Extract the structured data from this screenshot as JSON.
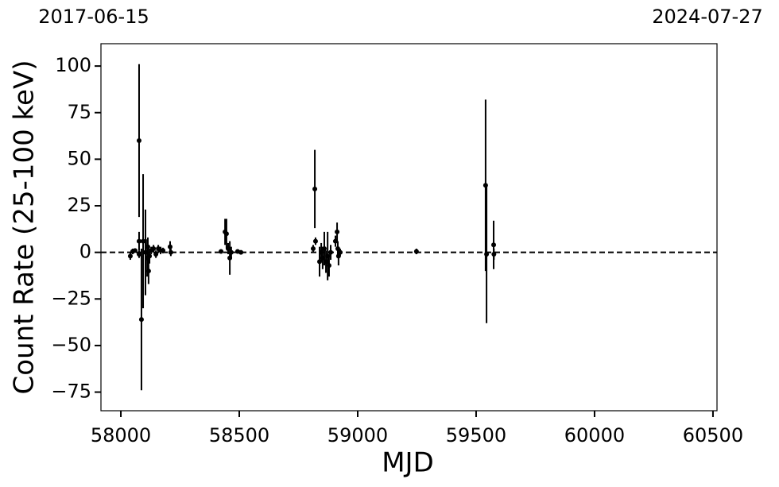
{
  "chart_data": {
    "type": "errorbar",
    "annotations": [
      "2017-06-15",
      "2024-07-27"
    ],
    "xlabel": "MJD",
    "ylabel": "Count Rate (25-100 keV)",
    "x": [
      58040,
      58050,
      58060,
      58077,
      58077,
      58077,
      58087,
      58094,
      58104,
      58111,
      58114,
      58117,
      58121,
      58128,
      58138,
      58148,
      58158,
      58168,
      58178,
      58208,
      58211,
      58423,
      58440,
      58446,
      58453,
      58460,
      58466,
      58493,
      58507,
      58812,
      58819,
      58822,
      58839,
      58846,
      58852,
      58859,
      58866,
      58873,
      58879,
      58886,
      58906,
      58913,
      58916,
      58919,
      58926,
      59248,
      59540,
      59544,
      59574,
      59575
    ],
    "values": [
      -2,
      0.5,
      1,
      60,
      6,
      -1,
      -36,
      6,
      0,
      -3,
      3,
      -10,
      -2,
      1,
      2,
      -1,
      2,
      1,
      1,
      3,
      0,
      0.5,
      11,
      10,
      2,
      -3,
      0,
      0.5,
      0,
      2,
      34,
      6,
      -5,
      0,
      -3,
      2,
      -5,
      -2,
      -7,
      0,
      6,
      11,
      2,
      -2,
      0,
      0.5,
      36,
      -1,
      4,
      -1
    ],
    "errors": [
      2,
      1.5,
      1,
      41,
      5,
      2,
      38,
      36,
      23,
      10,
      5,
      7,
      4,
      2,
      2,
      2,
      2,
      2,
      1.5,
      3,
      2,
      1,
      7,
      8,
      3,
      9,
      3,
      1,
      1,
      2,
      21,
      2,
      8,
      5,
      6,
      9,
      6,
      13,
      6,
      4,
      3,
      5,
      4,
      5,
      2,
      1.5,
      46,
      37,
      13,
      3
    ],
    "color": "#000000",
    "reference_line": 0,
    "xlim": [
      57916,
      60517
    ],
    "ylim": [
      -85,
      112
    ],
    "xticks": [
      58000,
      58500,
      59000,
      59500,
      60000,
      60500
    ],
    "yticks": [
      {
        "value": -75,
        "label": "−75"
      },
      {
        "value": -50,
        "label": "−50"
      },
      {
        "value": -25,
        "label": "−25"
      },
      0,
      25,
      50,
      75,
      100
    ]
  }
}
